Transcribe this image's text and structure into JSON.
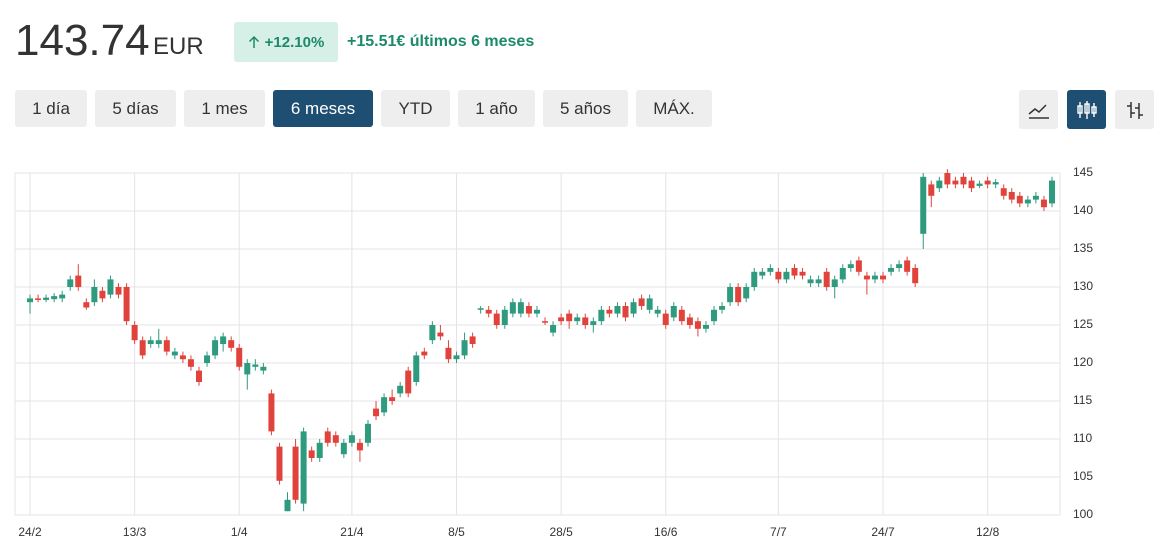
{
  "header": {
    "price": "143.74",
    "currency": "EUR",
    "change_pct": "+12.10%",
    "change_text": "+15.51€ últimos 6 meses"
  },
  "ranges": [
    "1 día",
    "5 días",
    "1 mes",
    "6 meses",
    "YTD",
    "1 año",
    "5 años",
    "MÁX."
  ],
  "selected_range_index": 3,
  "chart_data": {
    "type": "candlestick",
    "categories": [
      "24/2",
      null,
      null,
      null,
      null,
      null,
      null,
      null,
      null,
      null,
      null,
      null,
      null,
      "13/3",
      null,
      null,
      null,
      null,
      null,
      null,
      null,
      null,
      null,
      null,
      null,
      null,
      "1/4",
      null,
      null,
      null,
      null,
      null,
      null,
      null,
      null,
      null,
      null,
      null,
      null,
      null,
      "21/4",
      null,
      null,
      null,
      null,
      null,
      null,
      null,
      null,
      null,
      null,
      null,
      null,
      "8/5",
      null,
      null,
      null,
      null,
      null,
      null,
      null,
      null,
      null,
      null,
      null,
      null,
      "28/5",
      null,
      null,
      null,
      null,
      null,
      null,
      null,
      null,
      null,
      null,
      null,
      null,
      "16/6",
      null,
      null,
      null,
      null,
      null,
      null,
      null,
      null,
      null,
      null,
      null,
      null,
      null,
      "7/7",
      null,
      null,
      null,
      null,
      null,
      null,
      null,
      null,
      null,
      null,
      null,
      null,
      "24/7",
      null,
      null,
      null,
      null,
      null,
      null,
      null,
      null,
      null,
      null,
      null,
      null,
      "12/8",
      null,
      null,
      null,
      null,
      null,
      null,
      null,
      null
    ],
    "open": [
      128,
      128.5,
      128.3,
      128.4,
      128.5,
      130,
      131.5,
      128,
      128,
      129.5,
      129,
      130,
      130,
      125,
      123,
      122.5,
      122.5,
      123,
      121,
      121,
      120.5,
      119,
      120,
      121,
      122.5,
      123,
      122,
      118.5,
      119.5,
      119,
      116,
      109,
      100.5,
      109,
      101.5,
      108.5,
      107.5,
      111,
      110.5,
      108,
      109.5,
      109.5,
      109.5,
      114,
      113.5,
      115.5,
      116,
      119,
      117.5,
      121.5,
      123,
      124,
      122,
      120.5,
      121,
      123.5,
      127,
      127,
      126.5,
      125,
      126.5,
      126.5,
      127.5,
      126.5,
      125.5,
      124,
      126,
      126.5,
      125.5,
      126,
      125,
      125.5,
      127,
      126.5,
      127.5,
      126.5,
      128.5,
      127,
      126.5,
      126.5,
      126,
      127,
      126,
      125.5,
      124.5,
      125.5,
      127,
      128,
      130,
      128.5,
      130,
      131.5,
      132,
      132,
      131,
      132.5,
      132,
      130.5,
      130.5,
      132,
      130,
      131,
      132.5,
      133.5,
      131.5,
      131,
      131.5,
      132,
      132.5,
      133.5,
      132.5,
      137,
      143.5,
      143,
      145,
      144,
      144.5,
      144,
      143.3,
      144,
      143.5,
      143,
      142.5,
      142,
      141,
      141.5,
      141.5,
      141
    ],
    "high": [
      129,
      129,
      129,
      129.2,
      129.5,
      131.5,
      133,
      128.5,
      131,
      130,
      131.5,
      130.5,
      130.5,
      125.5,
      123.5,
      123.5,
      124.5,
      123.5,
      122,
      121.5,
      121,
      119.5,
      121.5,
      123.5,
      124,
      123.5,
      122.5,
      120.5,
      120.5,
      120,
      116.5,
      109.5,
      103,
      110,
      111.5,
      109,
      110,
      111.5,
      111,
      110,
      111,
      110,
      112.5,
      115,
      116,
      116.5,
      117.5,
      119.5,
      121.5,
      122,
      125.5,
      125,
      123,
      121.5,
      124,
      124,
      127.5,
      127.5,
      127,
      127.5,
      128.5,
      128.5,
      128,
      127.5,
      126,
      125.5,
      126.5,
      127,
      126.5,
      126.5,
      126,
      127.5,
      127.5,
      128,
      128,
      128.5,
      129,
      129,
      127.5,
      127,
      128,
      127.5,
      126.5,
      126,
      125.5,
      127.5,
      128,
      130.5,
      130.5,
      130.5,
      132.5,
      132.5,
      133,
      132.5,
      132.5,
      133,
      132.5,
      131.5,
      131.5,
      132.5,
      131.5,
      133,
      133.5,
      134,
      132,
      132,
      132,
      133,
      133.5,
      134,
      133,
      145,
      144,
      144.5,
      145.5,
      144.5,
      145,
      144.5,
      144,
      144.5,
      144.2,
      143.5,
      143,
      142.5,
      142,
      142.5,
      142,
      144.5
    ],
    "low": [
      126.5,
      128,
      128,
      128,
      128,
      129.5,
      129.5,
      127,
      127.5,
      128,
      128.5,
      128.5,
      125,
      122.5,
      120.5,
      122,
      122,
      121,
      120.5,
      120,
      119,
      117,
      119.5,
      120.5,
      121.5,
      121.5,
      119,
      116.5,
      119,
      118.5,
      110.5,
      104,
      100.5,
      101.5,
      100.5,
      107,
      107,
      109,
      109,
      107.5,
      109,
      107,
      109,
      112.5,
      113,
      114.5,
      115.5,
      115.5,
      117,
      120.5,
      122.5,
      123,
      120,
      120,
      120.5,
      122,
      126.5,
      126,
      124.5,
      124.5,
      126,
      126,
      126,
      126,
      125,
      123.5,
      125,
      124.5,
      125,
      124.5,
      124,
      125,
      126,
      126,
      125.5,
      126,
      127,
      126.5,
      126,
      124.5,
      125.5,
      125,
      124.5,
      123.5,
      124,
      125,
      126.5,
      127.5,
      127.5,
      128,
      129.5,
      131,
      131.5,
      130.5,
      130.5,
      131,
      131,
      130,
      130,
      129.5,
      128.5,
      130.5,
      132,
      131.5,
      129,
      130.5,
      130.5,
      131.5,
      132,
      131.5,
      130,
      135,
      140.5,
      142.5,
      143,
      143,
      143,
      142.5,
      143,
      143,
      143,
      141.5,
      141,
      140.5,
      140.5,
      141,
      140,
      140.5
    ],
    "close": [
      128.5,
      128.3,
      128.6,
      128.8,
      129,
      131,
      130,
      127.3,
      130,
      128.5,
      131,
      129,
      125.5,
      123,
      121,
      123,
      123,
      121.5,
      121.5,
      120.5,
      119.5,
      117.5,
      121,
      123,
      123.5,
      122,
      119.5,
      120,
      119.8,
      119.5,
      111,
      104.5,
      102,
      102,
      111,
      107.5,
      109.5,
      109.5,
      109.5,
      109.5,
      110.5,
      108.5,
      112,
      113,
      115.5,
      115,
      117,
      116,
      121,
      121,
      125,
      123.5,
      120.5,
      121,
      123,
      122.5,
      127.2,
      126.5,
      125,
      127,
      128,
      128,
      126.5,
      127,
      125.3,
      125,
      125.5,
      125.5,
      126,
      125,
      125.5,
      127,
      126.5,
      127.5,
      126,
      128,
      127.5,
      128.5,
      127,
      125,
      127.5,
      125.5,
      125,
      124.5,
      125,
      127,
      127.5,
      130,
      128,
      130,
      132,
      132,
      132.5,
      131,
      132,
      131.5,
      131.5,
      131,
      131,
      130,
      131,
      132.5,
      133,
      132,
      131,
      131.5,
      131,
      132.5,
      133,
      132,
      130.5,
      144.5,
      142,
      144,
      143.5,
      143.5,
      143.5,
      143,
      143.6,
      143.5,
      143.8,
      142,
      141.5,
      141,
      141.5,
      142,
      140.5,
      144
    ],
    "up_color": "#2e9a7e",
    "down_color": "#e0433c",
    "ylim": [
      100,
      145
    ],
    "yticks": [
      100,
      105,
      110,
      115,
      120,
      125,
      130,
      135,
      140,
      145
    ],
    "grid": true
  }
}
